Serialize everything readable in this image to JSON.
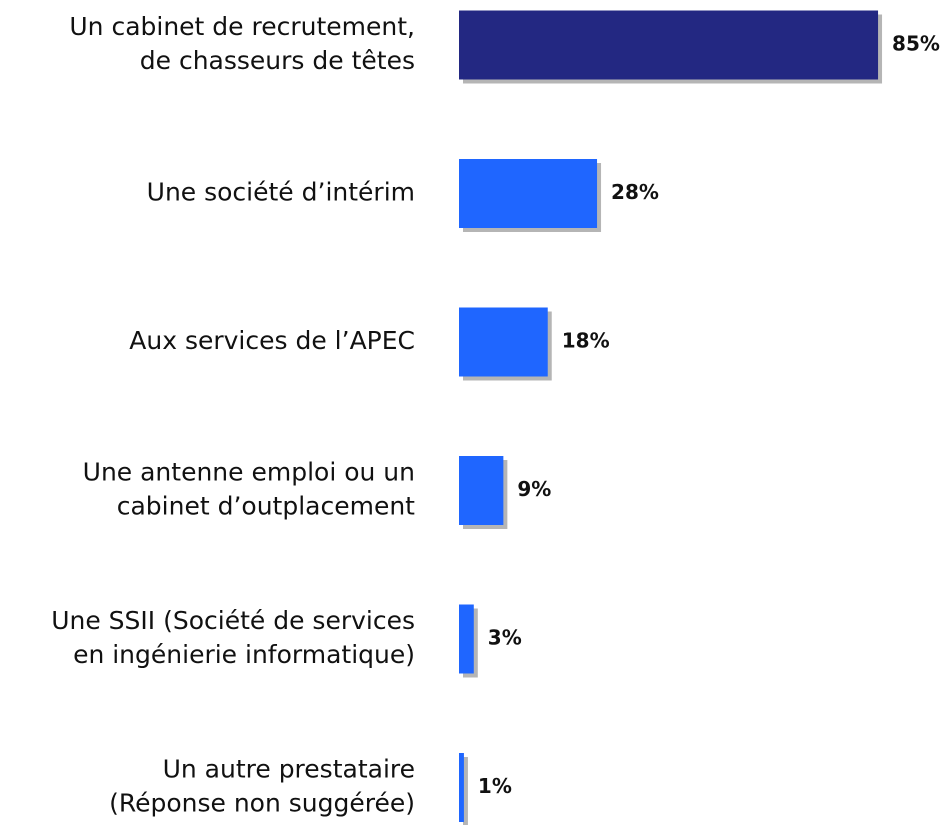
{
  "chart_data": {
    "type": "bar",
    "orientation": "horizontal",
    "categories": [
      [
        "Un cabinet de recrutement,",
        "de chasseurs de têtes"
      ],
      [
        "Une société d’intérim"
      ],
      [
        "Aux services de l’APEC"
      ],
      [
        "Une antenne emploi ou un",
        "cabinet d’outplacement"
      ],
      [
        "Une SSII  (Société de services",
        "en ingénierie informatique)"
      ],
      [
        "Un autre prestataire",
        "(Réponse non suggérée)"
      ]
    ],
    "values": [
      85,
      28,
      18,
      9,
      3,
      1
    ],
    "value_labels": [
      "85%",
      "28%",
      "18%",
      "9%",
      "3%",
      "1%"
    ],
    "colors": [
      "#232882",
      "#1f66ff",
      "#1f66ff",
      "#1f66ff",
      "#1f66ff",
      "#1f66ff"
    ]
  }
}
